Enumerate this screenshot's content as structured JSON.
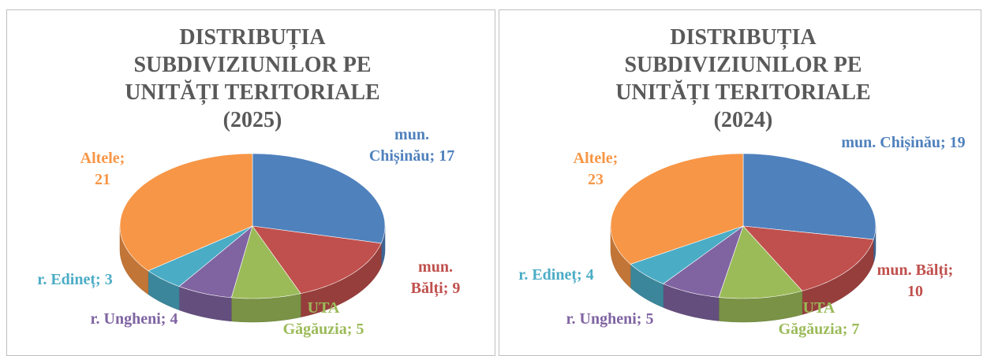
{
  "chart_data": [
    {
      "type": "pie3d",
      "title": "DISTRIBUȚIA SUBDIVIZIUNILOR PE UNITĂȚI TERITORIALE (2025)",
      "categories": [
        "mun. Chișinău;",
        "mun. Bălți;",
        "UTA Găgăuzia;",
        "r. Ungheni;",
        "r. Edineț;",
        "Altele;"
      ],
      "values": [
        17,
        9,
        5,
        4,
        3,
        21
      ],
      "colors": [
        "#4f81bd",
        "#c0504d",
        "#9bbb59",
        "#8064a2",
        "#4bacc6",
        "#f79646"
      ]
    },
    {
      "type": "pie3d",
      "title": "DISTRIBUȚIA SUBDIVIZIUNILOR PE UNITĂȚI TERITORIALE (2024)",
      "categories": [
        "mun. Chișinău;",
        "mun. Bălți;",
        "UTA Găgăuzia;",
        "r. Ungheni;",
        "r. Edineț;",
        "Altele;"
      ],
      "values": [
        19,
        10,
        7,
        5,
        4,
        23
      ],
      "colors": [
        "#4f81bd",
        "#c0504d",
        "#9bbb59",
        "#8064a2",
        "#4bacc6",
        "#f79646"
      ]
    }
  ]
}
